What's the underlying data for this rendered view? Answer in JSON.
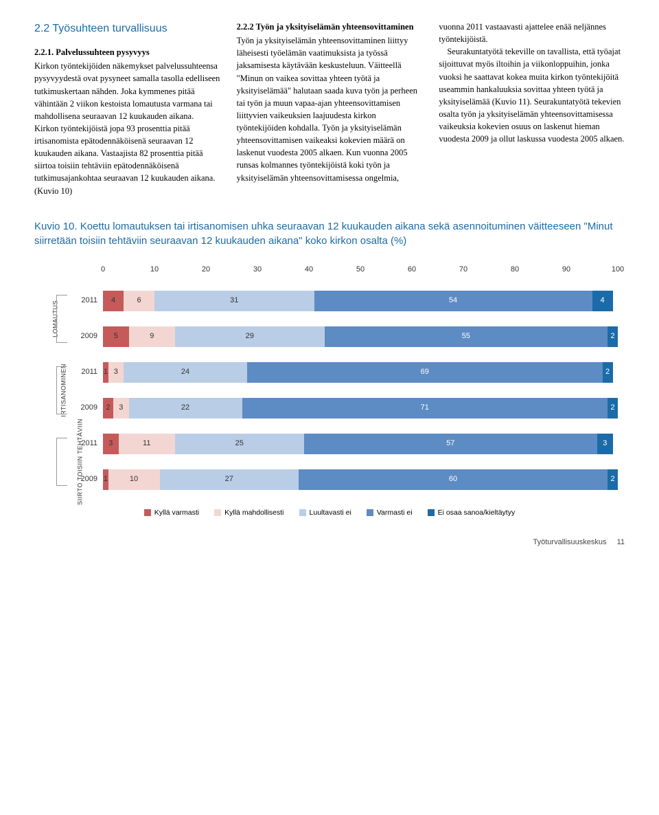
{
  "section": {
    "title": "2.2 Työsuhteen turvallisuus",
    "sub1_title": "2.2.1. Palvelussuhteen pysyvyys",
    "col1_text": "Kirkon työntekijöiden näkemykset palvelussuhteensa pysyvyydestä ovat pysyneet samalla tasolla edelliseen tutkimuskertaan nähden. Joka kymmenes pitää vähintään 2 viikon kestoista lomautusta varmana tai mahdollisena seuraavan 12 kuukauden aikana. Kirkon työntekijöistä jopa 93 prosenttia pitää irtisanomista epätodennäköisenä seuraavan 12 kuukauden aikana. Vastaajista 82 prosenttia pitää siirtoa toisiin tehtäviin epätodennäköisenä tutkimusajankohtaa seuraavan 12 kuukauden aikana. (Kuvio 10)",
    "sub2_title": "2.2.2 Työn ja yksityiselämän yhteensovittaminen",
    "col2_text": "Työn ja yksityiselämän yhteensovittaminen liittyy läheisesti työelämän vaatimuksista ja työssä jaksamisesta käytävään keskusteluun. Väitteellä \"Minun on vaikea sovittaa yhteen työtä ja yksityiselämää\" halutaan saada kuva työn ja perheen tai työn ja muun vapaa-ajan yhteensovittamisen liittyvien vaikeuksien laajuudesta kirkon työntekijöiden kohdalla. Työn ja yksityiselämän yhteensovittamisen vaikeaksi kokevien määrä on laskenut vuodesta 2005 alkaen. Kun vuonna 2005 runsas kolmannes työntekijöistä koki työn ja yksityiselämän yhteensovittamisessa ongelmia,",
    "col3_text_a": "vuonna 2011 vastaavasti ajattelee enää neljännes työntekijöistä.",
    "col3_text_b": "Seurakuntatyötä tekeville on tavallista, että työajat sijoittuvat myös iltoihin ja viikonloppuihin, jonka vuoksi he saattavat kokea muita kirkon työntekijöitä useammin hankaluuksia sovittaa yhteen työtä ja yksityiselämää (Kuvio 11). Seurakuntatyötä tekevien osalta työn ja yksityiselämän yhteensovittamisessa vaikeuksia kokevien osuus on laskenut hieman vuodesta 2009 ja ollut laskussa vuodesta 2005 alkaen."
  },
  "chart": {
    "title": "Kuvio 10. Koettu lomautuksen tai irtisanomisen uhka seuraavan 12 kuukauden aikana sekä asennoituminen väitteeseen \"Minut siirretään toisiin tehtäviin seuraavan 12 kuukauden aikana\" koko kirkon osalta (%)",
    "axis_ticks": [
      0,
      10,
      20,
      30,
      40,
      50,
      60,
      70,
      80,
      90,
      100
    ],
    "colors": {
      "s1": "#c65a5a",
      "s2": "#f3d6d2",
      "s3": "#b9cde6",
      "s4": "#5d8bc4",
      "s5": "#1a6ba8"
    },
    "groups": [
      {
        "label": "LOMAUTUS",
        "rows": [
          {
            "year": "2011",
            "segments": [
              4,
              6,
              31,
              54,
              4
            ],
            "remainder": 1
          },
          {
            "year": "2009",
            "segments": [
              5,
              9,
              29,
              55,
              2
            ],
            "remainder": 0
          }
        ]
      },
      {
        "label": "IRTISANOMINEN",
        "rows": [
          {
            "year": "2011",
            "segments": [
              1,
              3,
              24,
              69,
              2
            ],
            "remainder": 1
          },
          {
            "year": "2009",
            "segments": [
              2,
              3,
              22,
              71,
              2
            ],
            "remainder": 0
          }
        ]
      },
      {
        "label": "SIIRTO TOISIIN TEHTÄVIIN",
        "rows": [
          {
            "year": "2011",
            "segments": [
              3,
              11,
              25,
              57,
              3
            ],
            "remainder": 1
          },
          {
            "year": "2009",
            "segments": [
              1,
              10,
              27,
              60,
              2
            ],
            "remainder": 0
          }
        ]
      }
    ],
    "legend": [
      {
        "label": "Kyllä varmasti",
        "color": "#c65a5a"
      },
      {
        "label": "Kyllä mahdollisesti",
        "color": "#f3d6d2"
      },
      {
        "label": "Luultavasti ei",
        "color": "#b9cde6"
      },
      {
        "label": "Varmasti ei",
        "color": "#5d8bc4"
      },
      {
        "label": "Ei osaa sanoa/kieltäytyy",
        "color": "#1a6ba8"
      }
    ]
  },
  "footer": {
    "text": "Työturvallisuuskeskus",
    "page": "11"
  }
}
